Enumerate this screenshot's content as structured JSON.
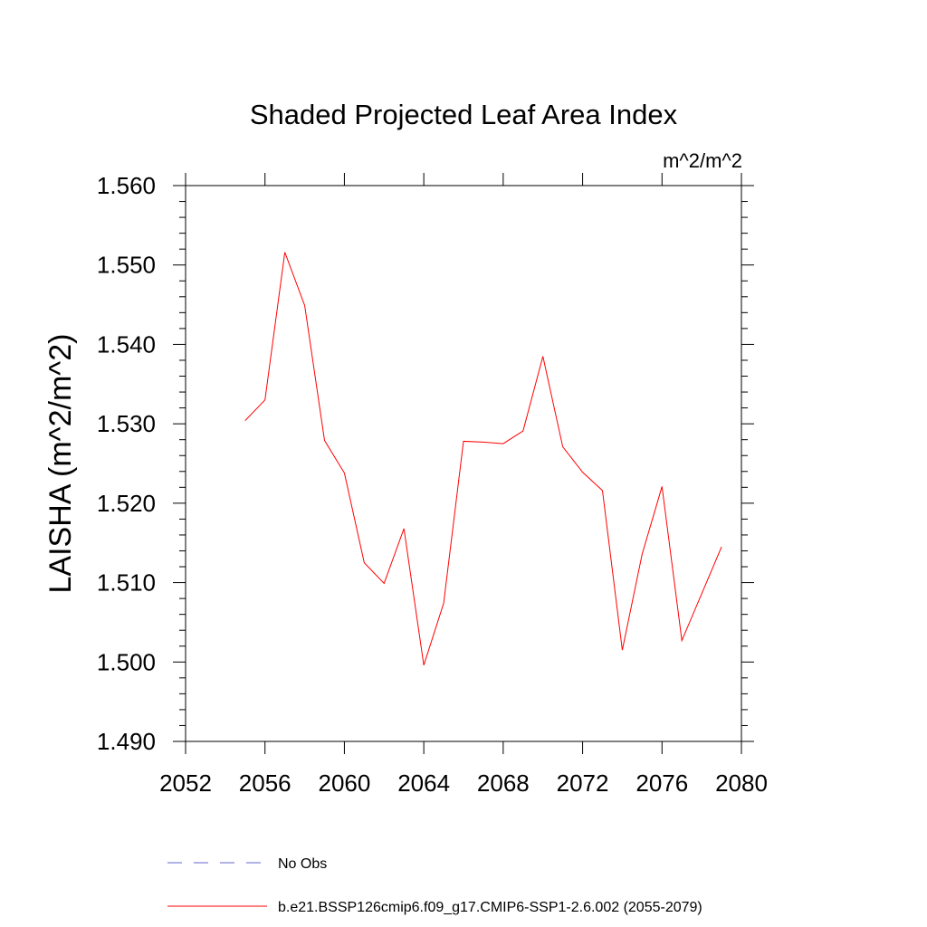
{
  "chart_data": {
    "type": "line",
    "title": "Shaded Projected Leaf Area Index",
    "units": "m^2/m^2",
    "ylabel": "LAISHA  (m^2/m^2)",
    "xlabel": "",
    "xlim": [
      2052,
      2080
    ],
    "ylim": [
      1.49,
      1.56
    ],
    "x_ticks": [
      2052,
      2056,
      2060,
      2064,
      2068,
      2072,
      2076,
      2080
    ],
    "x_tick_labels": [
      "2052",
      "2056",
      "2060",
      "2064",
      "2068",
      "2072",
      "2076",
      "2080"
    ],
    "y_ticks": [
      1.49,
      1.5,
      1.51,
      1.52,
      1.53,
      1.54,
      1.55,
      1.56
    ],
    "y_tick_labels": [
      "1.490",
      "1.500",
      "1.510",
      "1.520",
      "1.530",
      "1.540",
      "1.550",
      "1.560"
    ],
    "grid": false,
    "legend_position": "bottom",
    "series": [
      {
        "name": "b.e21.BSSP126cmip6.f09_g17.CMIP6-SSP1-2.6.002 (2055-2079)",
        "color": "#ff0000",
        "dash": "solid",
        "x": [
          2055,
          2056,
          2057,
          2058,
          2059,
          2060,
          2061,
          2062,
          2063,
          2064,
          2065,
          2066,
          2067,
          2068,
          2069,
          2070,
          2071,
          2072,
          2073,
          2074,
          2075,
          2076,
          2077,
          2078,
          2079
        ],
        "values": [
          1.5304,
          1.533,
          1.5516,
          1.5449,
          1.5279,
          1.5238,
          1.5125,
          1.5099,
          1.5168,
          1.4996,
          1.5074,
          1.5278,
          1.5277,
          1.5275,
          1.5291,
          1.5385,
          1.5271,
          1.5239,
          1.5216,
          1.5015,
          1.5136,
          1.5221,
          1.5027,
          1.5086,
          1.5145
        ]
      }
    ],
    "legend": [
      {
        "label": "No Obs",
        "color": "#6666cc",
        "dash": "dashed"
      },
      {
        "label": "b.e21.BSSP126cmip6.f09_g17.CMIP6-SSP1-2.6.002 (2055-2079)",
        "color": "#ff0000",
        "dash": "solid"
      }
    ]
  }
}
